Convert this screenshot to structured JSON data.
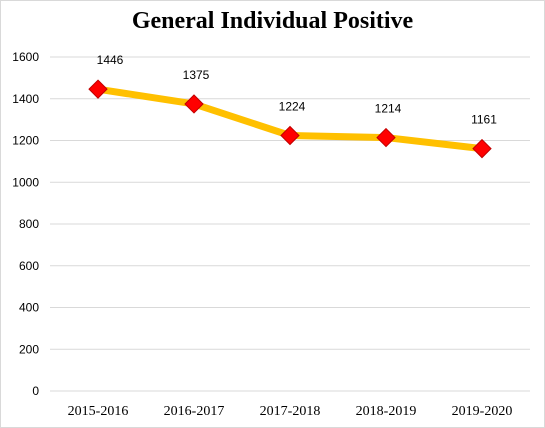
{
  "chart_data": {
    "type": "line",
    "title": "General Individual Positive",
    "categories": [
      "2015-2016",
      "2016-2017",
      "2017-2018",
      "2018-2019",
      "2019-2020"
    ],
    "series": [
      {
        "values": [
          1446,
          1375,
          1224,
          1214,
          1161
        ]
      }
    ],
    "data_labels": [
      "1446",
      "1375",
      "1224",
      "1214",
      "1161"
    ],
    "yticks": [
      "0",
      "200",
      "400",
      "600",
      "800",
      "1000",
      "1200",
      "1400",
      "1600"
    ],
    "ylim": [
      0,
      1600
    ],
    "grid": true,
    "legend": "none",
    "colors": {
      "line": "#FFC000",
      "marker": "#FF0000",
      "marker_edge": "#C00000",
      "grid": "#d9d9d9"
    }
  }
}
